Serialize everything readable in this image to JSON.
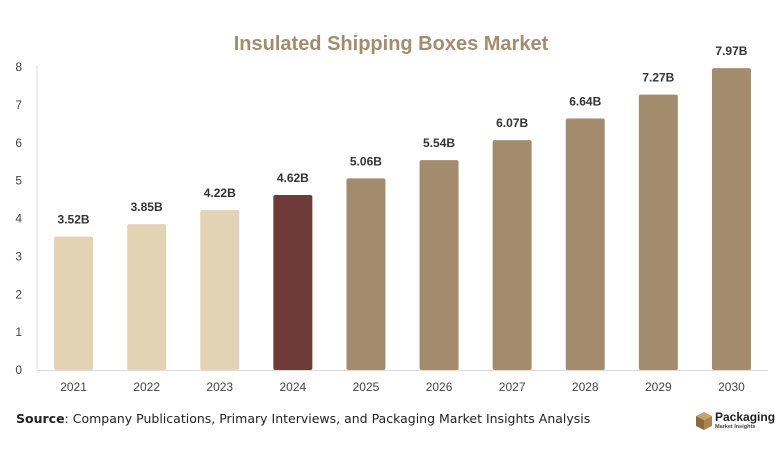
{
  "chart_data": {
    "type": "bar",
    "title": "Insulated Shipping Boxes Market",
    "categories": [
      "2021",
      "2022",
      "2023",
      "2024",
      "2025",
      "2026",
      "2027",
      "2028",
      "2029",
      "2030"
    ],
    "values": [
      3.52,
      3.85,
      4.22,
      4.62,
      5.06,
      5.54,
      6.07,
      6.64,
      7.27,
      7.97
    ],
    "data_labels": [
      "3.52B",
      "3.85B",
      "4.22B",
      "4.62B",
      "5.06B",
      "5.54B",
      "6.07B",
      "6.64B",
      "7.27B",
      "7.97B"
    ],
    "ylim": [
      0,
      8
    ],
    "yticks": [
      "0",
      "1",
      "2",
      "3",
      "4",
      "5",
      "6",
      "7",
      "8"
    ],
    "grid": false,
    "colors": {
      "historical": "#e3d3b5",
      "current": "#6e3a3a",
      "forecast": "#a38c6e",
      "title": "#a38c70"
    },
    "bar_color_groups": [
      "historical",
      "historical",
      "historical",
      "current",
      "forecast",
      "forecast",
      "forecast",
      "forecast",
      "forecast",
      "forecast"
    ]
  },
  "source": {
    "label": "Source",
    "text": ": Company Publications, Primary Interviews, and Packaging Market Insights Analysis"
  },
  "logo": {
    "name": "Packaging",
    "tagline": "Market Insights",
    "icon": "box-icon"
  }
}
